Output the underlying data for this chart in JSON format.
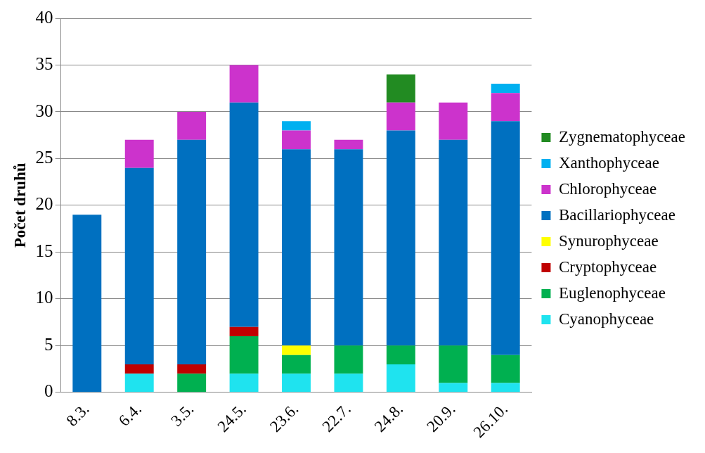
{
  "chart_data": {
    "type": "bar",
    "ylabel": "Počet druhů",
    "categories": [
      "8.3.",
      "6.4.",
      "3.5.",
      "24.5.",
      "23.6.",
      "22.7.",
      "24.8.",
      "20.9.",
      "26.10."
    ],
    "stacked": true,
    "ylim": [
      0,
      40
    ],
    "yticks": [
      0,
      5,
      10,
      15,
      20,
      25,
      30,
      35,
      40
    ],
    "grid": "y",
    "legend": "right",
    "series": [
      {
        "name": "Cyanophyceae",
        "color": "#1fe3ef",
        "values": [
          0,
          2,
          0,
          2,
          2,
          2,
          3,
          1,
          1
        ]
      },
      {
        "name": "Euglenophyceae",
        "color": "#00b050",
        "values": [
          0,
          0,
          2,
          4,
          2,
          3,
          2,
          4,
          3
        ]
      },
      {
        "name": "Cryptophyceae",
        "color": "#c00000",
        "values": [
          0,
          1,
          1,
          1,
          0,
          0,
          0,
          0,
          0
        ]
      },
      {
        "name": "Synurophyceae",
        "color": "#ffff00",
        "values": [
          0,
          0,
          0,
          0,
          1,
          0,
          0,
          0,
          0
        ]
      },
      {
        "name": "Bacillariophyceae",
        "color": "#0070c0",
        "values": [
          19,
          21,
          24,
          24,
          21,
          21,
          23,
          22,
          25
        ]
      },
      {
        "name": "Chlorophyceae",
        "color": "#cc33cc",
        "values": [
          0,
          3,
          3,
          4,
          2,
          1,
          3,
          4,
          3
        ]
      },
      {
        "name": "Xanthophyceae",
        "color": "#00b0f0",
        "values": [
          0,
          0,
          0,
          0,
          1,
          0,
          0,
          0,
          1
        ]
      },
      {
        "name": "Zygnematophyceae",
        "color": "#228b22",
        "values": [
          0,
          0,
          0,
          0,
          0,
          0,
          3,
          0,
          0
        ]
      }
    ]
  }
}
